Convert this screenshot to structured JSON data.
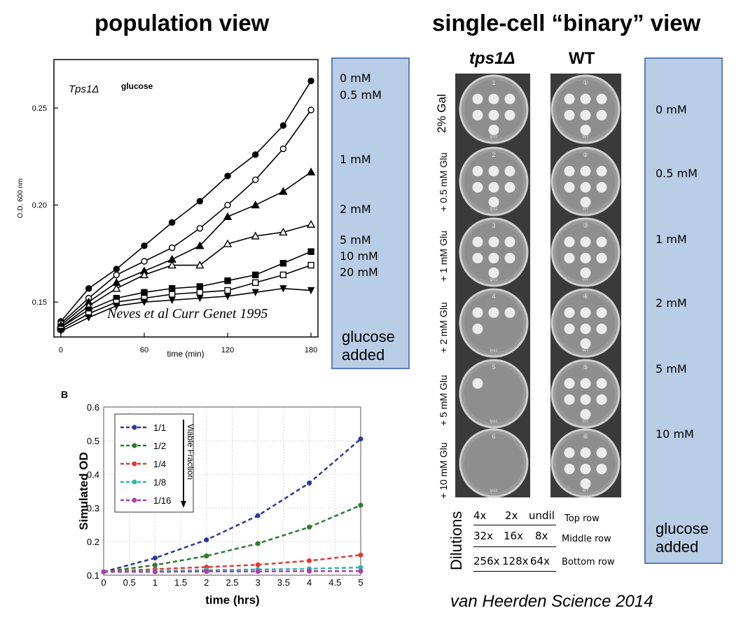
{
  "titles": {
    "population": "population view",
    "single_cell": "single-cell “binary” view"
  },
  "top_boxes": {
    "left_concentrations": [
      "0 mM",
      "0.5 mM",
      "1 mM",
      "2 mM",
      "5 mM",
      "10 mM",
      "20 mM"
    ],
    "right_concentrations": [
      "0 mM",
      "0.5 mM",
      "1 mM",
      "2 mM",
      "5 mM",
      "10 mM"
    ],
    "glucose_added": [
      "glucose",
      "added"
    ],
    "color": "#b9cde6"
  },
  "plates": {
    "strain_left": "tps1Δ",
    "strain_right": "WT",
    "row_labels": [
      "2% Gal",
      "+ 0.5 mM Glu",
      "+ 1 mM Glu",
      "+ 2 mM Glu",
      "+ 5 mM Glu",
      "+ 10 mM Glu"
    ],
    "dilutions_label": "Dilutions",
    "dilution_rows": [
      {
        "values": [
          "4x",
          "2x",
          "undil"
        ],
        "name": "Top row"
      },
      {
        "values": [
          "32x",
          "16x",
          "8x"
        ],
        "name": "Middle row"
      },
      {
        "values": [
          "256x",
          "128x",
          "64x"
        ],
        "name": "Bottom row"
      }
    ],
    "plate_numbers_left": [
      "1",
      "2",
      "3",
      "4",
      "5",
      "6"
    ],
    "plate_numbers_right": [
      "①",
      "②",
      "③",
      "④",
      "⑤",
      "⑥"
    ],
    "plate_marks_left": [
      "tps1",
      "tps1",
      "tps1",
      "tps1",
      "tps1",
      "tps1"
    ],
    "plate_marks_right": [
      "WT",
      "WT",
      "WT",
      "WT",
      "WT",
      "WT"
    ],
    "colonies_left": [
      7,
      7,
      7,
      4,
      1,
      0
    ],
    "colonies_right": [
      7,
      7,
      7,
      7,
      7,
      7
    ]
  },
  "citations": {
    "neves": "Neves et al Curr Genet 1995",
    "heerden": "van Heerden Science 2014"
  },
  "chart_data": [
    {
      "type": "line",
      "annotation_strain": "Tps1Δ",
      "annotation_sugar": "glucose",
      "xlabel": "time (min)",
      "ylabel": "O.D. 600 nm",
      "xlim": [
        -5,
        185
      ],
      "ylim": [
        0.132,
        0.275
      ],
      "xticks": [
        0,
        60,
        120,
        180
      ],
      "yticks": [
        0.15,
        0.2,
        0.25
      ],
      "ytick_labels": [
        "0.15",
        "0.20",
        "0.25"
      ],
      "x": [
        0,
        20,
        40,
        60,
        80,
        100,
        120,
        140,
        160,
        180
      ],
      "series": [
        {
          "name": "0 mM",
          "marker": "filled-circle",
          "values": [
            0.14,
            0.157,
            0.167,
            0.179,
            0.191,
            0.202,
            0.215,
            0.226,
            0.241,
            0.264
          ]
        },
        {
          "name": "0.5 mM",
          "marker": "open-circle",
          "values": [
            0.139,
            0.152,
            0.164,
            0.171,
            0.178,
            0.188,
            0.2,
            0.213,
            0.229,
            0.249
          ]
        },
        {
          "name": "1 mM",
          "marker": "filled-triangle",
          "values": [
            0.138,
            0.15,
            0.16,
            0.166,
            0.172,
            0.179,
            0.194,
            0.2,
            0.207,
            0.217
          ]
        },
        {
          "name": "2 mM",
          "marker": "open-triangle",
          "values": [
            0.137,
            0.148,
            0.157,
            0.164,
            0.169,
            0.169,
            0.18,
            0.184,
            0.186,
            0.19
          ]
        },
        {
          "name": "5 mM",
          "marker": "filled-square",
          "values": [
            0.137,
            0.146,
            0.152,
            0.155,
            0.157,
            0.158,
            0.161,
            0.164,
            0.17,
            0.176
          ]
        },
        {
          "name": "10 mM",
          "marker": "open-square",
          "values": [
            0.136,
            0.144,
            0.15,
            0.152,
            0.154,
            0.155,
            0.156,
            0.16,
            0.164,
            0.169
          ]
        },
        {
          "name": "20 mM",
          "marker": "filled-invtriangle",
          "values": [
            0.135,
            0.142,
            0.148,
            0.15,
            0.151,
            0.152,
            0.153,
            0.155,
            0.157,
            0.156
          ]
        }
      ]
    },
    {
      "type": "line",
      "panel_label": "B",
      "xlabel": "time (hrs)",
      "ylabel": "Simulated OD",
      "xlim": [
        0,
        5
      ],
      "ylim": [
        0.1,
        0.6
      ],
      "xticks": [
        0,
        0.5,
        1,
        1.5,
        2,
        2.5,
        3,
        3.5,
        4,
        4.5,
        5
      ],
      "yticks": [
        0.1,
        0.2,
        0.3,
        0.4,
        0.5,
        0.6
      ],
      "grid": true,
      "legend_position": "top-left",
      "legend_annotation": "Viable Fraction",
      "x": [
        0,
        1,
        2,
        3,
        4,
        5
      ],
      "series": [
        {
          "name": "1/1",
          "color": "#2b3a9b",
          "values": [
            0.11,
            0.151,
            0.205,
            0.277,
            0.374,
            0.505
          ]
        },
        {
          "name": "1/2",
          "color": "#2e7a32",
          "values": [
            0.11,
            0.13,
            0.157,
            0.194,
            0.243,
            0.308
          ]
        },
        {
          "name": "1/4",
          "color": "#e23a3a",
          "values": [
            0.11,
            0.118,
            0.124,
            0.131,
            0.143,
            0.16
          ]
        },
        {
          "name": "1/8",
          "color": "#2eb8b0",
          "values": [
            0.11,
            0.112,
            0.115,
            0.117,
            0.119,
            0.123
          ]
        },
        {
          "name": "1/16",
          "color": "#b03cb0",
          "values": [
            0.11,
            0.11,
            0.111,
            0.111,
            0.112,
            0.112
          ]
        }
      ]
    }
  ]
}
